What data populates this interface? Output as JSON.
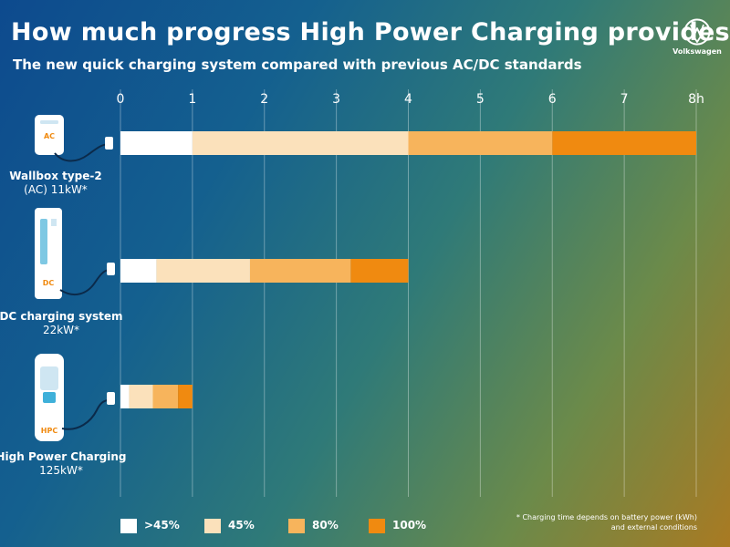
{
  "title": "How much progress High Power Charging provides",
  "subtitle": "The new quick charging system compared with previous AC/DC standards",
  "brand": {
    "name": "Volkswagen",
    "logo_icon": "vw-logo-icon"
  },
  "devices": [
    {
      "name": "Wallbox type-2",
      "power": "(AC) 11kW*",
      "badge": "AC",
      "icon": "wallbox-ac-icon"
    },
    {
      "name": "DC charging system",
      "power": "22kW*",
      "badge": "DC",
      "icon": "dc-charger-icon"
    },
    {
      "name": "High Power Charging",
      "power": "125kW*",
      "badge": "HPC",
      "icon": "hpc-charger-icon"
    }
  ],
  "legend": [
    {
      "label": ">45%",
      "color": "#ffffff"
    },
    {
      "label": "45%",
      "color": "#fbe1bb"
    },
    {
      "label": "80%",
      "color": "#f7b45c"
    },
    {
      "label": "100%",
      "color": "#f08a10"
    }
  ],
  "footnote": "* Charging time depends on battery power (kWh) and external conditions",
  "chart_data": {
    "type": "bar",
    "orientation": "horizontal",
    "stacked": true,
    "categories": [
      "Wallbox type-2",
      "DC charging system",
      "High Power Charging"
    ],
    "x_ticks": [
      "0",
      "1",
      "2",
      "3",
      "4",
      "5",
      "6",
      "7",
      "8h"
    ],
    "xlim": [
      0,
      8
    ],
    "grid": true,
    "legend_position": "bottom",
    "segment_labels": [
      ">45%",
      "45%",
      "80%",
      "100%"
    ],
    "segment_colors": [
      "#ffffff",
      "#fbe1bb",
      "#f7b45c",
      "#f08a10"
    ],
    "boundaries": [
      [
        0,
        1,
        4,
        6,
        8
      ],
      [
        0,
        0.5,
        1.8,
        3.2,
        4
      ],
      [
        0,
        0.12,
        0.45,
        0.8,
        1
      ]
    ]
  }
}
